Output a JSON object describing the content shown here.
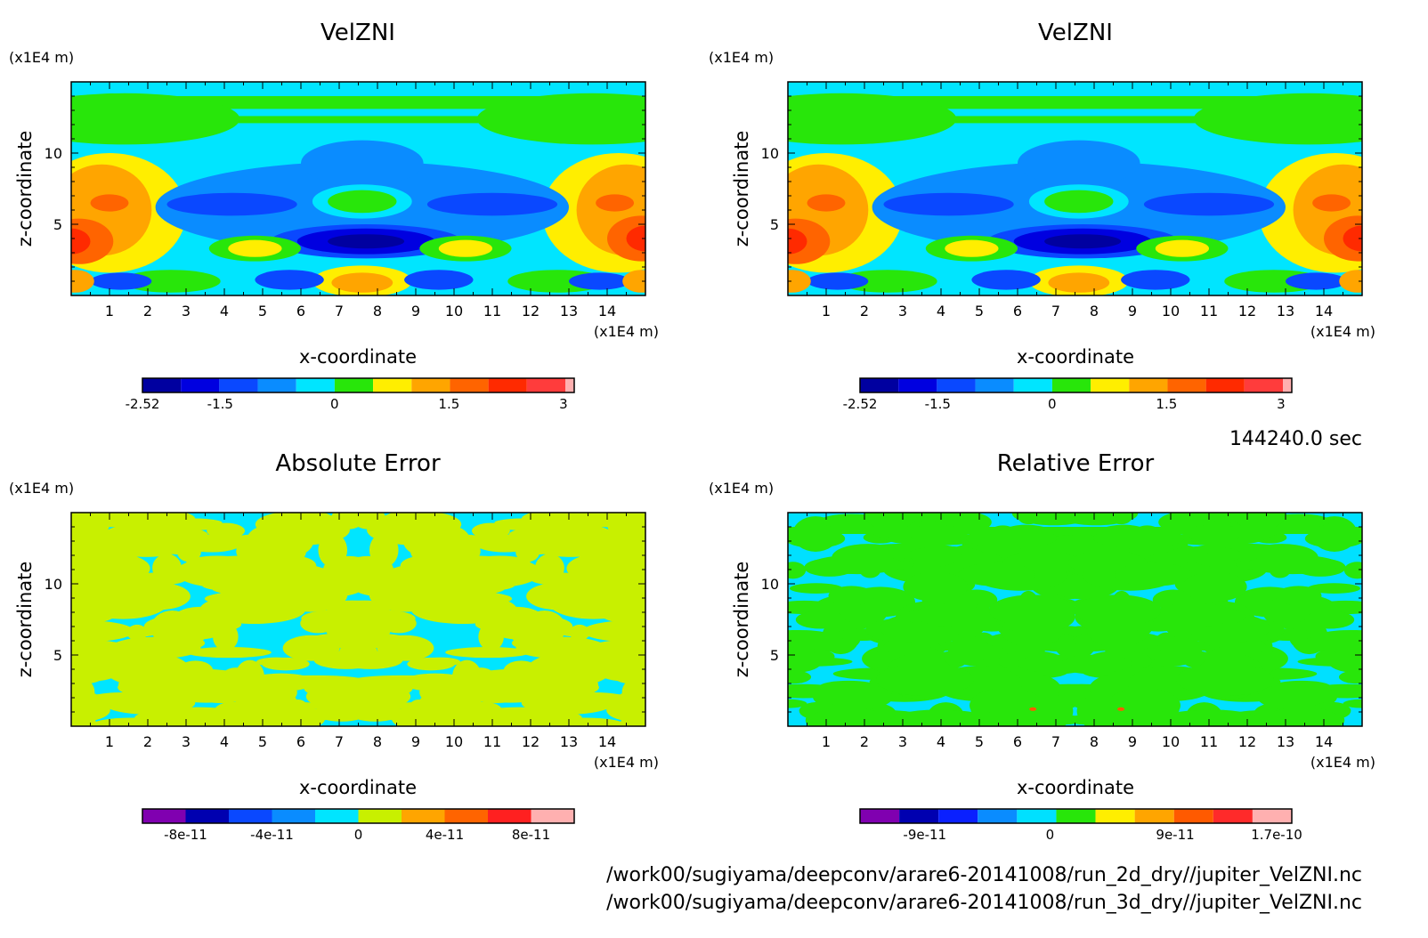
{
  "panels": [
    {
      "id": "velzni-2d",
      "title": "VelZNI",
      "x_unit": "(x1E4 m)",
      "y_unit": "(x1E4 m)",
      "xlabel": "x-coordinate",
      "ylabel": "z-coordinate",
      "colorbar_ticks": [
        "-2.52",
        "-1.5",
        "0",
        "1.5",
        "3"
      ],
      "colorbar_colors": [
        "#0000a0",
        "#0000e0",
        "#0a48ff",
        "#0a8cff",
        "#00e5ff",
        "#28e60a",
        "#ffee00",
        "#ffa500",
        "#ff6400",
        "#ff2a00",
        "#ff3c3c",
        "#ffb0b0"
      ]
    },
    {
      "id": "velzni-3d",
      "title": "VelZNI",
      "x_unit": "(x1E4 m)",
      "y_unit": "(x1E4 m)",
      "xlabel": "x-coordinate",
      "ylabel": "z-coordinate",
      "colorbar_ticks": [
        "-2.52",
        "-1.5",
        "0",
        "1.5",
        "3"
      ],
      "colorbar_colors": [
        "#0000a0",
        "#0000e0",
        "#0a48ff",
        "#0a8cff",
        "#00e5ff",
        "#28e60a",
        "#ffee00",
        "#ffa500",
        "#ff6400",
        "#ff2a00",
        "#ff3c3c",
        "#ffb0b0"
      ]
    },
    {
      "id": "absolute-error",
      "title": "Absolute Error",
      "x_unit": "(x1E4 m)",
      "y_unit": "(x1E4 m)",
      "xlabel": "x-coordinate",
      "ylabel": "z-coordinate",
      "colorbar_ticks": [
        "-8e-11",
        "-4e-11",
        "0",
        "4e-11",
        "8e-11"
      ],
      "colorbar_colors": [
        "#8000b0",
        "#0000b0",
        "#0a48ff",
        "#0a8cff",
        "#00e5ff",
        "#c8f000",
        "#ffa500",
        "#ff6400",
        "#ff2020",
        "#ffb0b0"
      ]
    },
    {
      "id": "relative-error",
      "title": "Relative Error",
      "x_unit": "(x1E4 m)",
      "y_unit": "(x1E4 m)",
      "xlabel": "x-coordinate",
      "ylabel": "z-coordinate",
      "colorbar_ticks": [
        "-9e-11",
        "0",
        "9e-11",
        "1.7e-10"
      ],
      "colorbar_colors": [
        "#8000b0",
        "#0000b0",
        "#0a20ff",
        "#0a8cff",
        "#00e0ff",
        "#28e60a",
        "#ffee00",
        "#ffa500",
        "#ff5a00",
        "#ff2a2a",
        "#ffb0b0"
      ]
    }
  ],
  "time_label": "144240.0 sec",
  "file_paths": [
    "/work00/sugiyama/deepconv/arare6-20141008/run_2d_dry//jupiter_VelZNI.nc",
    "/work00/sugiyama/deepconv/arare6-20141008/run_3d_dry//jupiter_VelZNI.nc"
  ],
  "chart_data": [
    {
      "type": "heatmap",
      "title": "VelZNI",
      "xlabel": "x-coordinate",
      "ylabel": "z-coordinate",
      "x_unit": "(x1E4 m)",
      "y_unit": "(x1E4 m)",
      "xlim": [
        0,
        15
      ],
      "ylim": [
        0,
        15
      ],
      "x_ticks": [
        1,
        2,
        3,
        4,
        5,
        6,
        7,
        8,
        9,
        10,
        11,
        12,
        13,
        14
      ],
      "y_ticks": [
        5,
        10
      ],
      "colorbar": {
        "min": -2.52,
        "max": 3,
        "ticks": [
          -2.52,
          -1.5,
          0,
          1.5,
          3
        ]
      },
      "features": [
        {
          "kind": "minimum",
          "x": 7.7,
          "z": 3.8
        },
        {
          "kind": "maximum",
          "x": 0.3,
          "z": 3.8
        },
        {
          "kind": "maximum",
          "x": 14.8,
          "z": 4.0
        },
        {
          "kind": "maximum",
          "x": 1.0,
          "z": 6.5
        },
        {
          "kind": "maximum",
          "x": 14.2,
          "z": 6.5
        },
        {
          "kind": "maximum",
          "x": 7.6,
          "z": 1.0
        },
        {
          "kind": "maximum",
          "x": 4.8,
          "z": 3.3
        },
        {
          "kind": "maximum",
          "x": 10.3,
          "z": 3.3
        }
      ]
    },
    {
      "type": "heatmap",
      "title": "VelZNI",
      "xlabel": "x-coordinate",
      "ylabel": "z-coordinate",
      "x_unit": "(x1E4 m)",
      "y_unit": "(x1E4 m)",
      "xlim": [
        0,
        15
      ],
      "ylim": [
        0,
        15
      ],
      "x_ticks": [
        1,
        2,
        3,
        4,
        5,
        6,
        7,
        8,
        9,
        10,
        11,
        12,
        13,
        14
      ],
      "y_ticks": [
        5,
        10
      ],
      "colorbar": {
        "min": -2.52,
        "max": 3,
        "ticks": [
          -2.52,
          -1.5,
          0,
          1.5,
          3
        ]
      },
      "features": [
        {
          "kind": "minimum",
          "x": 7.7,
          "z": 3.8
        },
        {
          "kind": "maximum",
          "x": 0.3,
          "z": 3.8
        },
        {
          "kind": "maximum",
          "x": 14.8,
          "z": 4.0
        },
        {
          "kind": "maximum",
          "x": 1.0,
          "z": 6.5
        },
        {
          "kind": "maximum",
          "x": 14.2,
          "z": 6.5
        },
        {
          "kind": "maximum",
          "x": 7.6,
          "z": 1.0
        },
        {
          "kind": "maximum",
          "x": 4.8,
          "z": 3.3
        },
        {
          "kind": "maximum",
          "x": 10.3,
          "z": 3.3
        }
      ]
    },
    {
      "type": "heatmap",
      "title": "Absolute Error",
      "xlabel": "x-coordinate",
      "ylabel": "z-coordinate",
      "x_unit": "(x1E4 m)",
      "y_unit": "(x1E4 m)",
      "xlim": [
        0,
        15
      ],
      "ylim": [
        0,
        15
      ],
      "x_ticks": [
        1,
        2,
        3,
        4,
        5,
        6,
        7,
        8,
        9,
        10,
        11,
        12,
        13,
        14
      ],
      "y_ticks": [
        5,
        10
      ],
      "colorbar": {
        "min": -1e-10,
        "max": 1e-10,
        "ticks": [
          -8e-11,
          -4e-11,
          0,
          4e-11,
          8e-11
        ]
      },
      "dominant_levels": [
        0,
        2e-11
      ]
    },
    {
      "type": "heatmap",
      "title": "Relative Error",
      "xlabel": "x-coordinate",
      "ylabel": "z-coordinate",
      "x_unit": "(x1E4 m)",
      "y_unit": "(x1E4 m)",
      "xlim": [
        0,
        15
      ],
      "ylim": [
        0,
        15
      ],
      "x_ticks": [
        1,
        2,
        3,
        4,
        5,
        6,
        7,
        8,
        9,
        10,
        11,
        12,
        13,
        14
      ],
      "y_ticks": [
        5,
        10
      ],
      "colorbar": {
        "min": -1.2e-10,
        "max": 1.9e-10,
        "ticks": [
          -9e-11,
          0,
          9e-11,
          1.7e-10
        ]
      },
      "dominant_levels": [
        -1.5e-11,
        1.5e-11
      ]
    }
  ]
}
